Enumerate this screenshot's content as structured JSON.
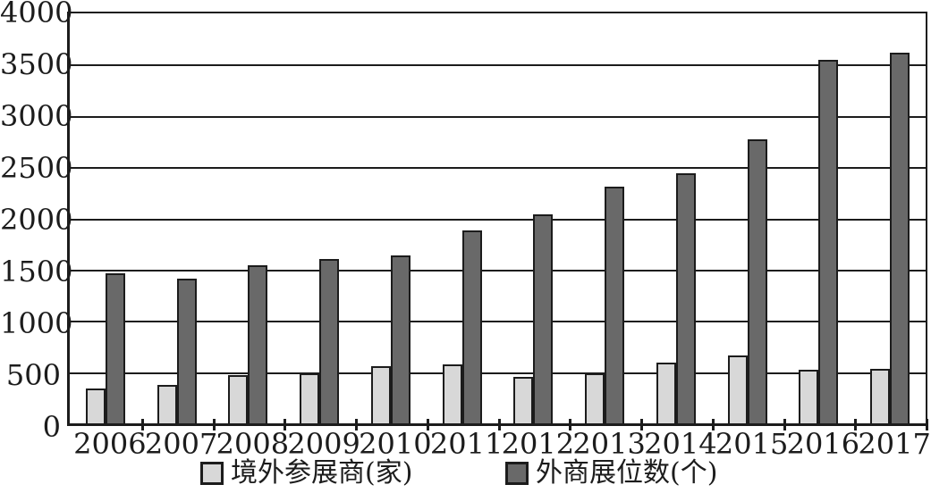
{
  "chart_data": {
    "type": "bar",
    "title": "",
    "xlabel": "",
    "ylabel": "",
    "categories": [
      "2006",
      "2007",
      "2008",
      "2009",
      "2010",
      "2011",
      "2012",
      "2013",
      "2014",
      "2015",
      "2016",
      "2017"
    ],
    "series": [
      {
        "name": "境外参展商(家)",
        "color": "#d8d8d8",
        "values": [
          340,
          375,
          470,
          490,
          560,
          575,
          450,
          490,
          595,
          660,
          525,
          530
        ]
      },
      {
        "name": "外商展位数(个)",
        "color": "#696969",
        "values": [
          1460,
          1415,
          1540,
          1600,
          1640,
          1880,
          2040,
          2310,
          2440,
          2770,
          3545,
          3620
        ]
      }
    ],
    "ylim": [
      0,
      4000
    ],
    "ytick_step": 500,
    "grid": true,
    "legend_position": "bottom",
    "bar_border_color": "#1c1c1c",
    "gridline_color": "#1c1c1c",
    "background_color": "#ffffff"
  },
  "legend": {
    "item1": "境外参展商(家)",
    "item2": "外商展位数(个)"
  }
}
